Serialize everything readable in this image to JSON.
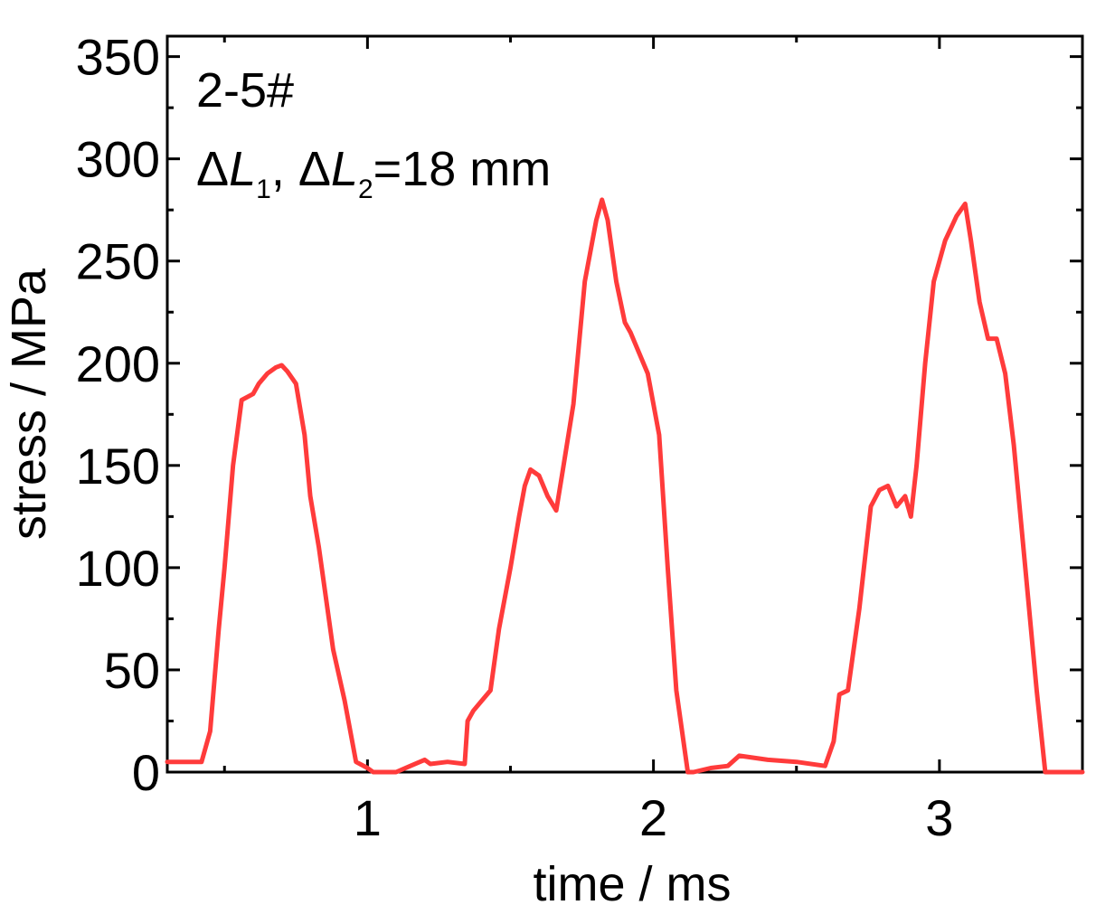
{
  "chart_data": {
    "type": "line",
    "title": "",
    "xlabel": "time / ms",
    "ylabel": "stress / MPa",
    "xlim": [
      0.3,
      3.5
    ],
    "ylim": [
      0,
      360
    ],
    "x_ticks": [
      1,
      2,
      3
    ],
    "x_tick_labels": [
      "1",
      "2",
      "3"
    ],
    "y_ticks": [
      0,
      50,
      100,
      150,
      200,
      250,
      300,
      350
    ],
    "y_tick_labels": [
      "0",
      "50",
      "100",
      "150",
      "200",
      "250",
      "300",
      "350"
    ],
    "grid": false,
    "legend": "none",
    "annotations": {
      "sample": "2-5#",
      "delta_symbol": "Δ",
      "length_symbol": "L",
      "sub1": "1",
      "separator": ", ",
      "sub2": "2",
      "value": "=18 mm"
    },
    "series": [
      {
        "color": "#ff3b3b",
        "x": [
          0.3,
          0.42,
          0.45,
          0.48,
          0.5,
          0.53,
          0.56,
          0.6,
          0.62,
          0.65,
          0.68,
          0.7,
          0.72,
          0.75,
          0.78,
          0.8,
          0.83,
          0.86,
          0.88,
          0.92,
          0.96,
          1.0,
          1.02,
          1.05,
          1.1,
          1.15,
          1.2,
          1.22,
          1.28,
          1.34,
          1.35,
          1.37,
          1.4,
          1.43,
          1.46,
          1.5,
          1.53,
          1.55,
          1.57,
          1.6,
          1.63,
          1.66,
          1.68,
          1.72,
          1.76,
          1.8,
          1.82,
          1.84,
          1.87,
          1.9,
          1.92,
          1.95,
          1.98,
          2.02,
          2.05,
          2.08,
          2.12,
          2.14,
          2.2,
          2.26,
          2.3,
          2.4,
          2.5,
          2.6,
          2.63,
          2.65,
          2.68,
          2.72,
          2.76,
          2.79,
          2.82,
          2.85,
          2.88,
          2.9,
          2.92,
          2.95,
          2.98,
          3.02,
          3.06,
          3.09,
          3.11,
          3.14,
          3.17,
          3.2,
          3.23,
          3.26,
          3.3,
          3.34,
          3.37,
          3.4,
          3.45,
          3.5
        ],
        "y": [
          5,
          5,
          20,
          70,
          100,
          150,
          182,
          185,
          190,
          195,
          198,
          199,
          196,
          190,
          165,
          135,
          110,
          80,
          60,
          35,
          5,
          2,
          0,
          0,
          0,
          3,
          6,
          4,
          5,
          4,
          25,
          30,
          35,
          40,
          70,
          100,
          125,
          140,
          148,
          145,
          135,
          128,
          145,
          180,
          240,
          270,
          280,
          270,
          240,
          220,
          215,
          205,
          195,
          165,
          100,
          40,
          0,
          0,
          2,
          3,
          8,
          6,
          5,
          3,
          15,
          38,
          40,
          80,
          130,
          138,
          140,
          130,
          135,
          125,
          150,
          200,
          240,
          260,
          272,
          278,
          260,
          230,
          212,
          212,
          195,
          160,
          100,
          40,
          0,
          0,
          0,
          0
        ]
      }
    ]
  }
}
